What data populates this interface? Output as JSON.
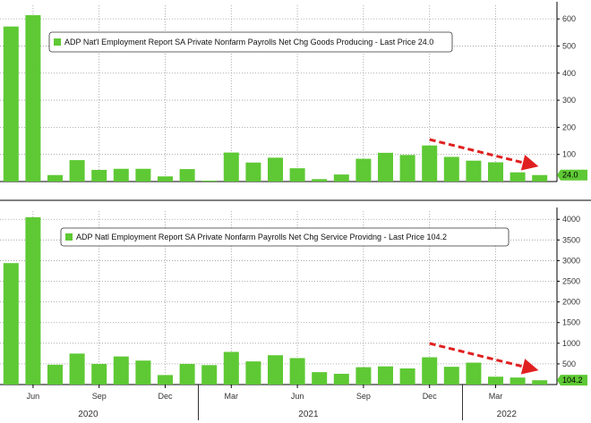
{
  "chart_data": [
    {
      "type": "bar",
      "legend": "ADP Nat'l Employment Report SA Private Nonfarm Payrolls Net Chg Goods Producing - Last Price 24.0",
      "last_value_label": "24.0",
      "color": "#5ec934",
      "ylim": [
        0,
        650
      ],
      "yticks": [
        100,
        200,
        300,
        400,
        500,
        600
      ],
      "grid": true,
      "legend_position": "top-left",
      "values": [
        572,
        614,
        24,
        79,
        43,
        47,
        47,
        19,
        46,
        2,
        107,
        70,
        88,
        49,
        9,
        26,
        84,
        106,
        98,
        133,
        91,
        77,
        71,
        34,
        24
      ],
      "annotation": "red dashed downward trend arrow"
    },
    {
      "type": "bar",
      "legend": "ADP Natl Employment Report SA Private Nonfarm Payrolls Net Chg Service Providng - Last Price 104.2",
      "last_value_label": "104.2",
      "color": "#5ec934",
      "ylim": [
        0,
        4200
      ],
      "yticks": [
        500,
        1000,
        1500,
        2000,
        2500,
        3000,
        3500,
        4000
      ],
      "grid": true,
      "legend_position": "top-left",
      "values": [
        2940,
        4050,
        480,
        750,
        500,
        680,
        580,
        230,
        500,
        470,
        790,
        560,
        710,
        640,
        300,
        260,
        420,
        440,
        390,
        660,
        430,
        530,
        190,
        170,
        104.2
      ],
      "annotation": "red dashed downward trend arrow"
    }
  ],
  "x_axis": {
    "month_labels": [
      {
        "index": 1,
        "label": "Jun"
      },
      {
        "index": 4,
        "label": "Sep"
      },
      {
        "index": 7,
        "label": "Dec"
      },
      {
        "index": 10,
        "label": "Mar"
      },
      {
        "index": 13,
        "label": "Jun"
      },
      {
        "index": 16,
        "label": "Sep"
      },
      {
        "index": 19,
        "label": "Dec"
      },
      {
        "index": 22,
        "label": "Mar"
      }
    ],
    "year_labels": [
      {
        "index": 3.5,
        "label": "2020"
      },
      {
        "index": 13.5,
        "label": "2021"
      },
      {
        "index": 22.5,
        "label": "2022"
      }
    ]
  },
  "colors": {
    "bar": "#5ec934",
    "grid": "#9a9a9a",
    "arrow": "#e02020",
    "label_bg": "#5ec934"
  }
}
